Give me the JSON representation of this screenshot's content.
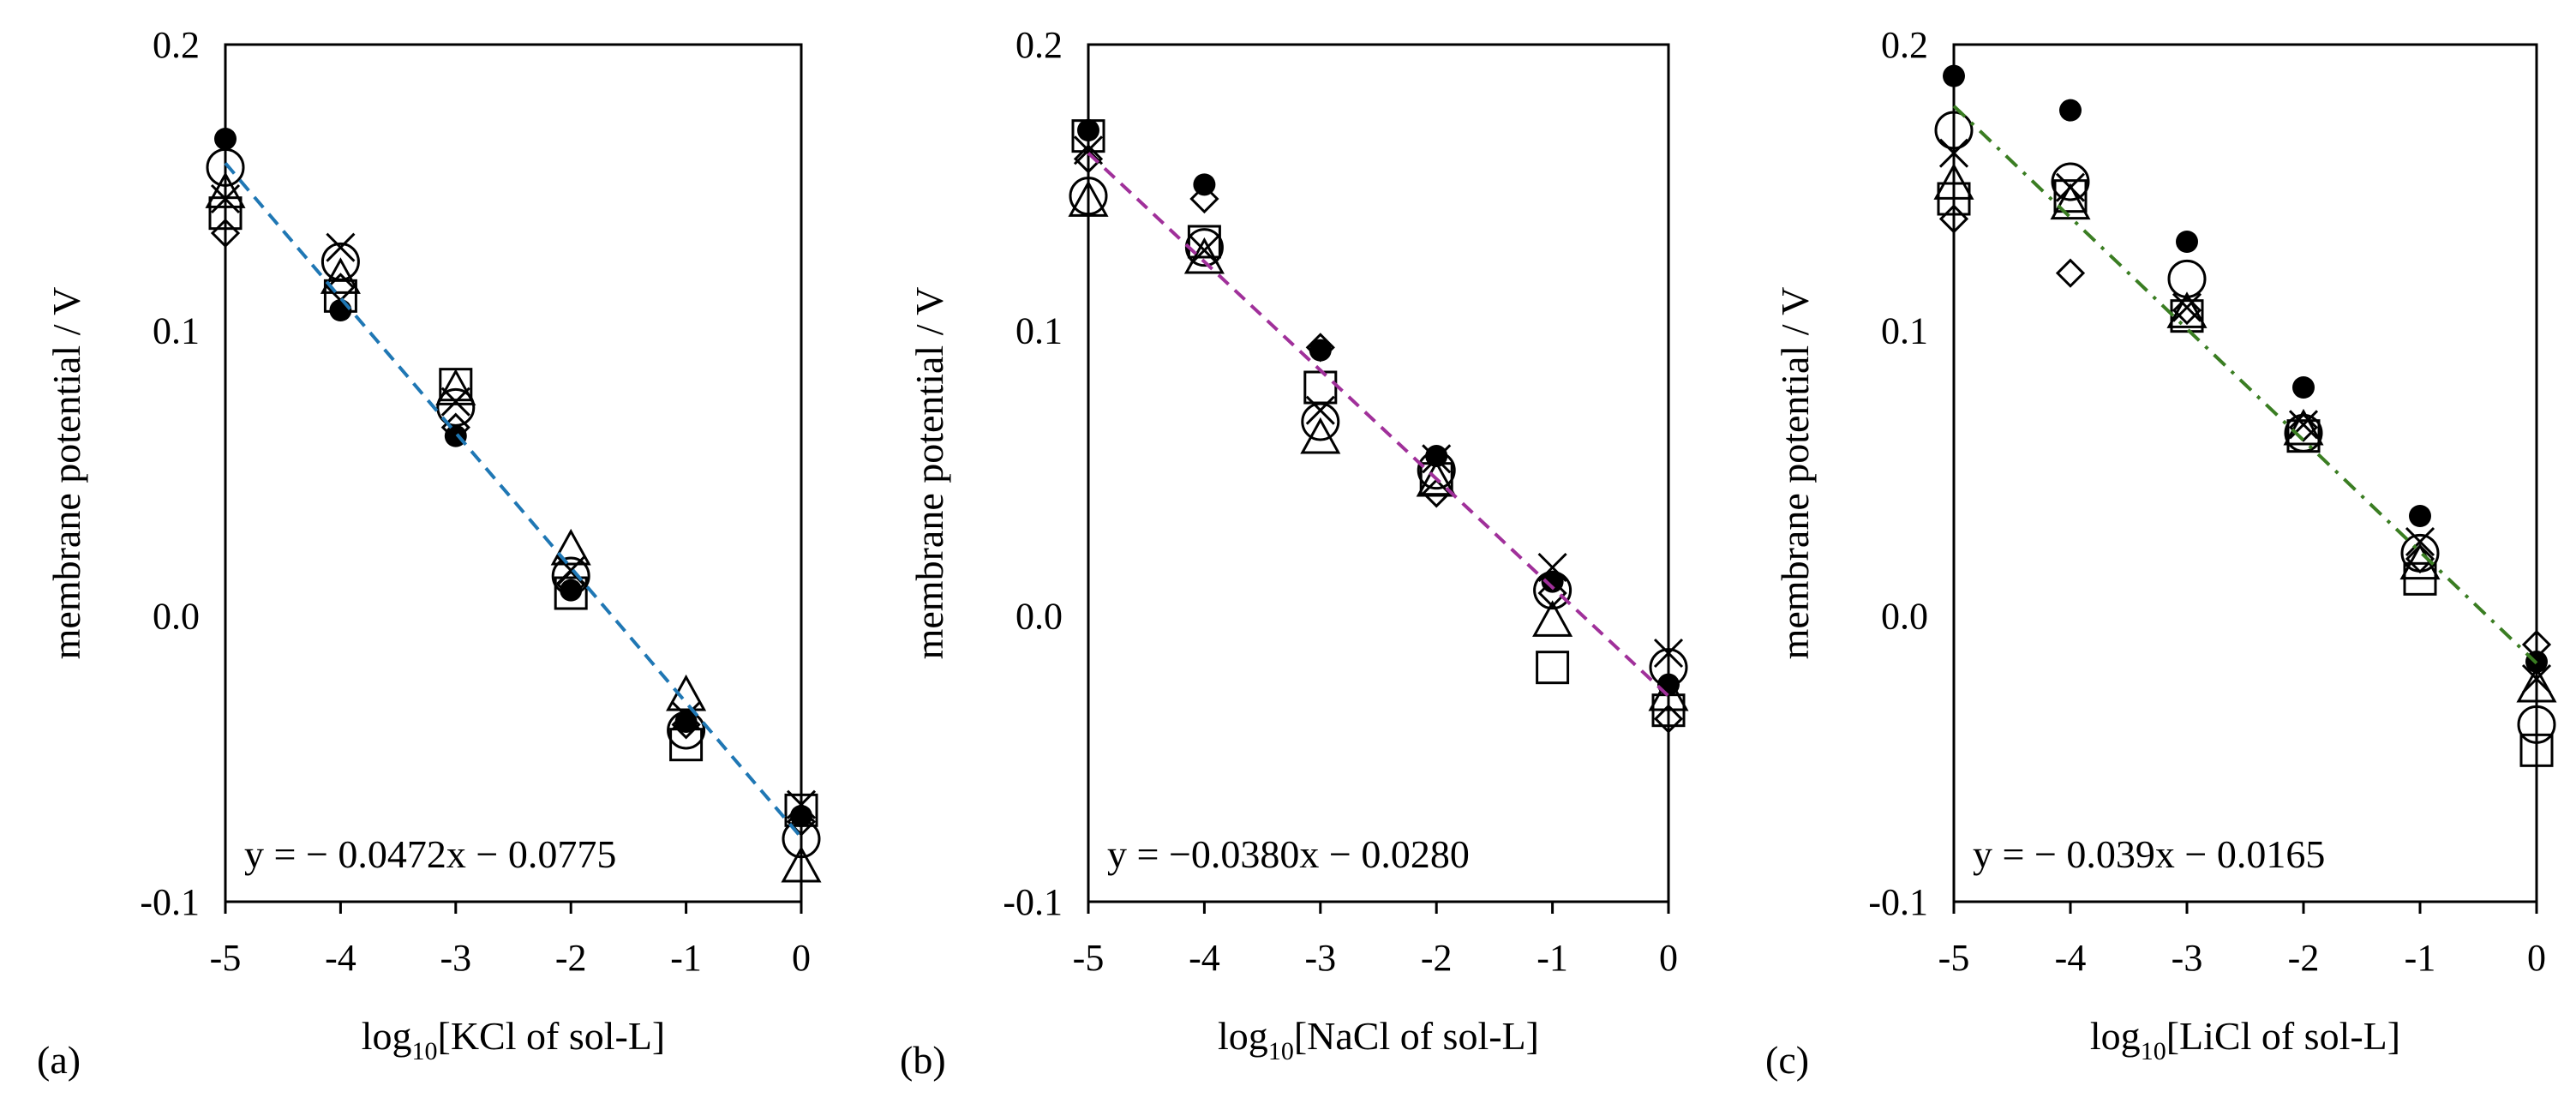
{
  "figure": {
    "panels": [
      {
        "label": "(a)",
        "xlabel_prefix": "log",
        "xlabel_sub": "10",
        "xlabel_rest": "[KCl of sol-L]"
      },
      {
        "label": "(b)",
        "xlabel_prefix": "log",
        "xlabel_sub": "10",
        "xlabel_rest": "[NaCl of sol-L]"
      },
      {
        "label": "(c)",
        "xlabel_prefix": "log",
        "xlabel_sub": "10",
        "xlabel_rest": "[LiCl of sol-L]"
      }
    ]
  },
  "chart_data": [
    {
      "type": "scatter",
      "title": "",
      "panel_label": "(a)",
      "xlabel": "log10[KCl of sol-L]",
      "ylabel": "membrane potential / V",
      "xlim": [
        -5,
        0
      ],
      "ylim": [
        -0.1,
        0.2
      ],
      "xticks": [
        "-5",
        "-4",
        "-3",
        "-2",
        "-1",
        "0"
      ],
      "yticks": [
        "-0.1",
        "0.0",
        "0.1",
        "0.2"
      ],
      "x": [
        -5,
        -4,
        -3,
        -2,
        -1,
        0
      ],
      "series": [
        {
          "name": "open circle",
          "marker": "circle",
          "values": [
            0.157,
            0.124,
            0.073,
            0.014,
            -0.04,
            -0.078
          ]
        },
        {
          "name": "filled circle",
          "marker": "filled-circle",
          "values": [
            0.167,
            0.107,
            0.063,
            0.009,
            -0.037,
            -0.07
          ]
        },
        {
          "name": "square",
          "marker": "square",
          "values": [
            0.141,
            0.112,
            0.081,
            0.008,
            -0.045,
            -0.068
          ]
        },
        {
          "name": "triangle",
          "marker": "triangle",
          "values": [
            0.148,
            0.118,
            0.079,
            0.023,
            -0.028,
            -0.088
          ]
        },
        {
          "name": "diamond",
          "marker": "diamond",
          "values": [
            0.134,
            0.115,
            0.066,
            0.011,
            -0.038,
            -0.072
          ]
        },
        {
          "name": "cross",
          "marker": "cross",
          "values": [
            0.146,
            0.129,
            0.075,
            0.016,
            -0.035,
            -0.066
          ]
        }
      ],
      "fit": {
        "slope": -0.0472,
        "intercept": -0.0775,
        "color": "#1f77b4",
        "style": "dashed",
        "equation": "y = − 0.0472x − 0.0775"
      }
    },
    {
      "type": "scatter",
      "title": "",
      "panel_label": "(b)",
      "xlabel": "log10[NaCl of sol-L]",
      "ylabel": "membrane potential / V",
      "xlim": [
        -5,
        0
      ],
      "ylim": [
        -0.1,
        0.2
      ],
      "xticks": [
        "-5",
        "-4",
        "-3",
        "-2",
        "-1",
        "0"
      ],
      "yticks": [
        "-0.1",
        "0.0",
        "0.1",
        "0.2"
      ],
      "x": [
        -5,
        -4,
        -3,
        -2,
        -1,
        0
      ],
      "series": [
        {
          "name": "open circle",
          "marker": "circle",
          "values": [
            0.147,
            0.129,
            0.068,
            0.051,
            0.009,
            -0.018
          ]
        },
        {
          "name": "filled circle",
          "marker": "filled-circle",
          "values": [
            0.17,
            0.151,
            0.093,
            0.056,
            0.012,
            -0.024
          ]
        },
        {
          "name": "square",
          "marker": "square",
          "values": [
            0.168,
            0.131,
            0.08,
            0.048,
            -0.018,
            -0.033
          ]
        },
        {
          "name": "triangle",
          "marker": "triangle",
          "values": [
            0.145,
            0.125,
            0.062,
            0.047,
            -0.002,
            -0.028
          ]
        },
        {
          "name": "diamond",
          "marker": "diamond",
          "values": [
            0.16,
            0.146,
            0.094,
            0.043,
            0.008,
            -0.036
          ]
        },
        {
          "name": "cross",
          "marker": "cross",
          "values": [
            0.163,
            0.128,
            0.072,
            0.055,
            0.017,
            -0.013
          ]
        }
      ],
      "fit": {
        "slope": -0.038,
        "intercept": -0.028,
        "color": "#a0309a",
        "style": "dashed",
        "equation": "y = −0.0380x − 0.0280"
      }
    },
    {
      "type": "scatter",
      "title": "",
      "panel_label": "(c)",
      "xlabel": "log10[LiCl of sol-L]",
      "ylabel": "membrane potential / V",
      "xlim": [
        -5,
        0
      ],
      "ylim": [
        -0.1,
        0.2
      ],
      "xticks": [
        "-5",
        "-4",
        "-3",
        "-2",
        "-1",
        "0"
      ],
      "yticks": [
        "-0.1",
        "0.0",
        "0.1",
        "0.2"
      ],
      "x": [
        -5,
        -4,
        -3,
        -2,
        -1,
        0
      ],
      "series": [
        {
          "name": "open circle",
          "marker": "circle",
          "values": [
            0.17,
            0.152,
            0.118,
            0.064,
            0.022,
            -0.038
          ]
        },
        {
          "name": "filled circle",
          "marker": "filled-circle",
          "values": [
            0.189,
            0.177,
            0.131,
            0.08,
            0.035,
            -0.016
          ]
        },
        {
          "name": "square",
          "marker": "square",
          "values": [
            0.146,
            0.147,
            0.105,
            0.063,
            0.013,
            -0.047
          ]
        },
        {
          "name": "triangle",
          "marker": "triangle",
          "values": [
            0.151,
            0.144,
            0.106,
            0.065,
            0.018,
            -0.025
          ]
        },
        {
          "name": "diamond",
          "marker": "diamond",
          "values": [
            0.139,
            0.12,
            0.107,
            0.066,
            0.02,
            -0.01
          ]
        },
        {
          "name": "cross",
          "marker": "cross",
          "values": [
            0.162,
            0.15,
            0.108,
            0.067,
            0.026,
            -0.022
          ]
        }
      ],
      "fit": {
        "slope": -0.039,
        "intercept": -0.0165,
        "color": "#3a7d22",
        "style": "dash-dot",
        "equation": "y = − 0.039x − 0.0165"
      }
    }
  ]
}
